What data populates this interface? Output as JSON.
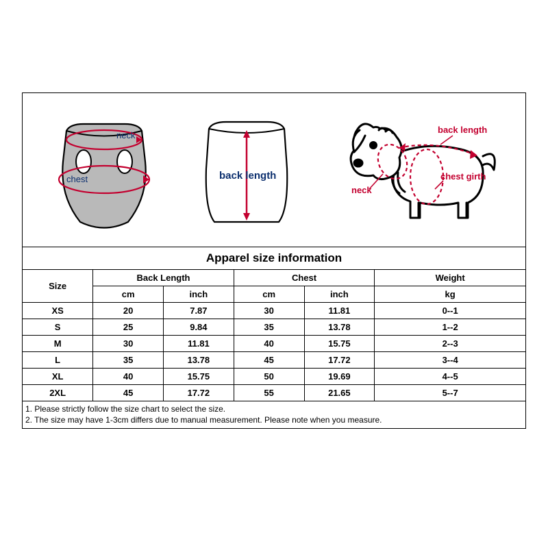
{
  "title": "Apparel size  information",
  "diagram_labels": {
    "vest_neck": "neck",
    "vest_chest": "chest",
    "back_length": "back length",
    "dog_neck": "neck",
    "dog_back": "back length",
    "dog_chest": "chest girth"
  },
  "columns": {
    "size": "Size",
    "back_length": "Back Length",
    "chest": "Chest",
    "weight": "Weight",
    "cm": "cm",
    "inch": "inch",
    "kg": "kg"
  },
  "rows": [
    {
      "size": "XS",
      "bl_cm": "20",
      "bl_in": "7.87",
      "ch_cm": "30",
      "ch_in": "11.81",
      "wt": "0--1"
    },
    {
      "size": "S",
      "bl_cm": "25",
      "bl_in": "9.84",
      "ch_cm": "35",
      "ch_in": "13.78",
      "wt": "1--2"
    },
    {
      "size": "M",
      "bl_cm": "30",
      "bl_in": "11.81",
      "ch_cm": "40",
      "ch_in": "15.75",
      "wt": "2--3"
    },
    {
      "size": "L",
      "bl_cm": "35",
      "bl_in": "13.78",
      "ch_cm": "45",
      "ch_in": "17.72",
      "wt": "3--4"
    },
    {
      "size": "XL",
      "bl_cm": "40",
      "bl_in": "15.75",
      "ch_cm": "50",
      "ch_in": "19.69",
      "wt": "4--5"
    },
    {
      "size": "2XL",
      "bl_cm": "45",
      "bl_in": "17.72",
      "ch_cm": "55",
      "ch_in": "21.65",
      "wt": "5--7"
    }
  ],
  "notes": [
    "1. Please strictly follow the size chart  to select the size.",
    "2. The size may have 1-3cm differs due to manual measurement. Please note when you measure."
  ],
  "style": {
    "border_color": "#000000",
    "arrow_color": "#c3002f",
    "diagram_fill": "#b9b9b9",
    "diagram_stroke": "#000000",
    "label_color_blue": "#0c2f6e",
    "label_color_red": "#c3002f",
    "font_header": 17,
    "font_cell": 13,
    "font_note": 12
  }
}
